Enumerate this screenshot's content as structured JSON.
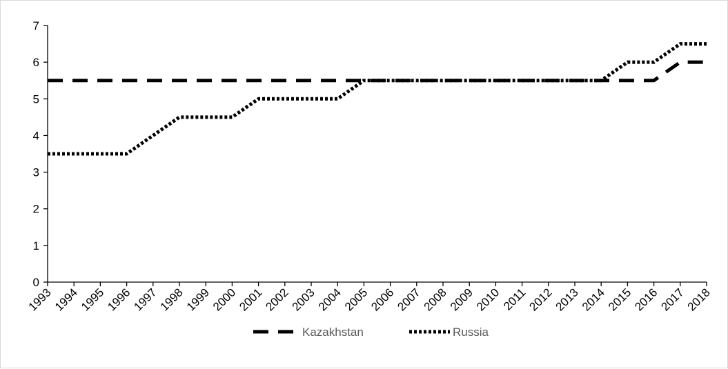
{
  "chart_data": {
    "type": "line",
    "title": "",
    "xlabel": "",
    "ylabel": "",
    "x": [
      "1993",
      "1994",
      "1995",
      "1996",
      "1997",
      "1998",
      "1999",
      "2000",
      "2001",
      "2002",
      "2003",
      "2004",
      "2005",
      "2006",
      "2007",
      "2008",
      "2009",
      "2010",
      "2011",
      "2012",
      "2013",
      "2014",
      "2015",
      "2016",
      "2017",
      "2018"
    ],
    "ylim": [
      0,
      7
    ],
    "yticks": [
      "0",
      "1",
      "2",
      "3",
      "4",
      "5",
      "6",
      "7"
    ],
    "grid": false,
    "legend_position": "bottom",
    "series": [
      {
        "name": "Kazakhstan",
        "style": "dashed",
        "color": "#000000",
        "values": [
          5.5,
          5.5,
          5.5,
          5.5,
          5.5,
          5.5,
          5.5,
          5.5,
          5.5,
          5.5,
          5.5,
          5.5,
          5.5,
          5.5,
          5.5,
          5.5,
          5.5,
          5.5,
          5.5,
          5.5,
          5.5,
          5.5,
          5.5,
          5.5,
          6,
          6
        ]
      },
      {
        "name": "Russia",
        "style": "dotted",
        "color": "#000000",
        "values": [
          3.5,
          3.5,
          3.5,
          3.5,
          4,
          4.5,
          4.5,
          4.5,
          5,
          5,
          5,
          5,
          5.5,
          5.5,
          5.5,
          5.5,
          5.5,
          5.5,
          5.5,
          5.5,
          5.5,
          5.5,
          6,
          6,
          6.5,
          6.5
        ]
      }
    ]
  }
}
